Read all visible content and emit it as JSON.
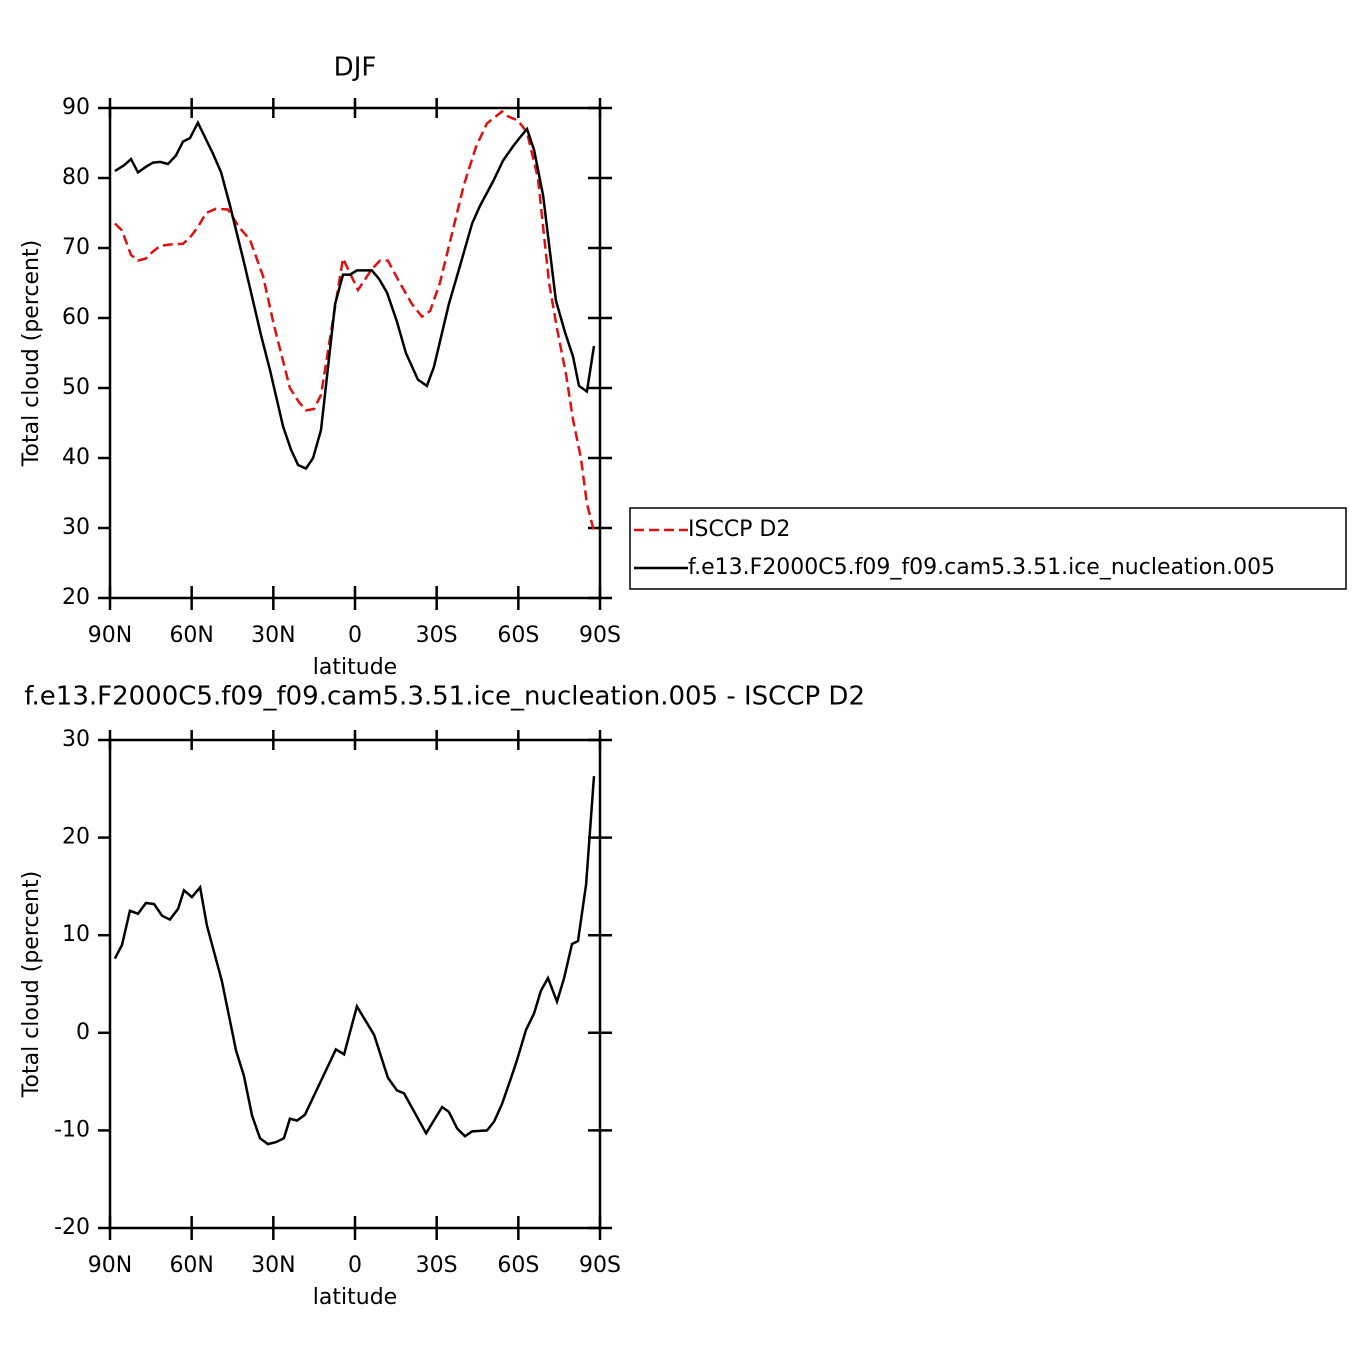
{
  "chart_data": [
    {
      "type": "line",
      "title": "DJF",
      "xlabel": "latitude",
      "ylabel": "Total cloud (percent)",
      "xlim": [
        90,
        -90
      ],
      "xticks": [
        {
          "value": 90,
          "label": "90N"
        },
        {
          "value": 60,
          "label": "60N"
        },
        {
          "value": 30,
          "label": "30N"
        },
        0,
        {
          "value": -30,
          "label": "30S"
        },
        {
          "value": -60,
          "label": "60S"
        },
        {
          "value": -90,
          "label": "90S"
        }
      ],
      "ylim": [
        20,
        90
      ],
      "yticks": [
        20,
        30,
        40,
        50,
        60,
        70,
        80,
        90
      ],
      "legend": "right",
      "series": [
        {
          "name": "ISCCP D2",
          "color": "#e01010",
          "linestyle": "dashed",
          "x": [
            88.2,
            85.6,
            82.3,
            79.7,
            76.8,
            74.2,
            71.6,
            68,
            63.2,
            60.6,
            57.7,
            54.7,
            51.1,
            46.7,
            42.6,
            38.6,
            33.8,
            29.8,
            23.9,
            20.6,
            18,
            15.1,
            12.5,
            8.8,
            4.4,
            -1.1,
            -6.2,
            -9.2,
            -12.1,
            -16.5,
            -20.9,
            -24.6,
            -27.6,
            -31.2,
            -35.6,
            -40,
            -44.5,
            -48.5,
            -54,
            -56.2,
            -59.9,
            -63.2,
            -67.2,
            -71.3,
            -74.2,
            -77.5,
            -80.1,
            -83,
            -85.2,
            -87.8
          ],
          "values": [
            73.5,
            72.5,
            69,
            68.2,
            68.5,
            69.5,
            70.3,
            70.5,
            70.6,
            71.5,
            73,
            75,
            75.6,
            75.5,
            73,
            71.2,
            66,
            59,
            50,
            48,
            46.8,
            47,
            49,
            58,
            68.5,
            64,
            67,
            68.2,
            68.2,
            65,
            62,
            60.2,
            61,
            65,
            72,
            79,
            84.5,
            87.8,
            89.5,
            88.8,
            88.2,
            86.5,
            80,
            65,
            58.5,
            52,
            45.5,
            40,
            33.5,
            29.5
          ]
        },
        {
          "name": "f.e13.F2000C5.f09_f09.cam5.3.51.ice_nucleation.005",
          "color": "#000000",
          "linestyle": "solid",
          "x": [
            88.2,
            84.9,
            82.3,
            79.7,
            76.8,
            74.2,
            71.6,
            68.7,
            65.8,
            63.2,
            60.6,
            57.7,
            52.2,
            49.2,
            45.9,
            40.8,
            37.8,
            34.5,
            31.2,
            26.4,
            23.5,
            20.9,
            18,
            15.4,
            12.5,
            7.3,
            4.4,
            1.8,
            -0.7,
            -3.3,
            -6.2,
            -8.8,
            -11.8,
            -15.4,
            -18.7,
            -23.1,
            -26.4,
            -29,
            -34.5,
            -38.6,
            -43,
            -45.9,
            -50.7,
            -54.4,
            -58,
            -60.6,
            -63.2,
            -65.8,
            -69.1,
            -73.8,
            -77.1,
            -80.1,
            -82.3,
            -85.2,
            -87.8
          ],
          "values": [
            81,
            81.8,
            82.7,
            80.8,
            81.6,
            82.2,
            82.3,
            82,
            83.2,
            85.2,
            85.7,
            87.9,
            83.5,
            80.8,
            76,
            68,
            63,
            57.5,
            52.5,
            44.5,
            41.2,
            39,
            38.5,
            40,
            44,
            62,
            66.2,
            66.2,
            66.8,
            66.8,
            66.8,
            65.6,
            63.6,
            59.5,
            55,
            51.2,
            50.3,
            53,
            62,
            67.5,
            73.5,
            76,
            79.5,
            82.5,
            84.5,
            85.8,
            87,
            84,
            77.5,
            62.5,
            58,
            54.5,
            50.3,
            49.5,
            56
          ]
        }
      ]
    },
    {
      "type": "line",
      "title": "f.e13.F2000C5.f09_f09.cam5.3.51.ice_nucleation.005 - ISCCP D2",
      "xlabel": "latitude",
      "ylabel": "Total cloud (percent)",
      "xlim": [
        90,
        -90
      ],
      "xticks": [
        {
          "value": 90,
          "label": "90N"
        },
        {
          "value": 60,
          "label": "60N"
        },
        {
          "value": 30,
          "label": "30N"
        },
        0,
        {
          "value": -30,
          "label": "30S"
        },
        {
          "value": -60,
          "label": "60S"
        },
        {
          "value": -90,
          "label": "90S"
        }
      ],
      "ylim": [
        -20,
        30
      ],
      "yticks": [
        -20,
        -10,
        0,
        10,
        20,
        30
      ],
      "color": "#000000",
      "x": [
        88.2,
        85.6,
        82.7,
        79.7,
        76.8,
        73.8,
        70.9,
        68,
        65,
        62.8,
        59.9,
        56.9,
        54.4,
        48.9,
        43.7,
        40.8,
        37.8,
        34.9,
        32,
        29,
        26.1,
        23.9,
        21.3,
        18.4,
        7,
        4,
        -0.7,
        -7,
        -12.1,
        -15.4,
        -18,
        -26.1,
        -32,
        -34.5,
        -37.5,
        -40.4,
        -43,
        -48.5,
        -51.1,
        -54,
        -57.7,
        -59.5,
        -62.8,
        -65.8,
        -68.3,
        -70.9,
        -74.2,
        -76.8,
        -79.7,
        -81.9,
        -84.9,
        -87.8
      ],
      "values": [
        7.6,
        9,
        12.5,
        12.2,
        13.3,
        13.2,
        12,
        11.6,
        12.7,
        14.6,
        13.9,
        14.9,
        11,
        5.3,
        -1.8,
        -4.4,
        -8.5,
        -10.8,
        -11.4,
        -11.2,
        -10.8,
        -8.8,
        -9,
        -8.4,
        -1.7,
        -2.2,
        2.7,
        -0.2,
        -4.6,
        -5.9,
        -6.2,
        -10.3,
        -7.6,
        -8.1,
        -9.8,
        -10.6,
        -10.1,
        -10,
        -9.1,
        -7.3,
        -4.3,
        -2.8,
        0.3,
        2,
        4.3,
        5.6,
        3.2,
        5.6,
        9.1,
        9.4,
        15.2,
        26.3
      ]
    }
  ]
}
